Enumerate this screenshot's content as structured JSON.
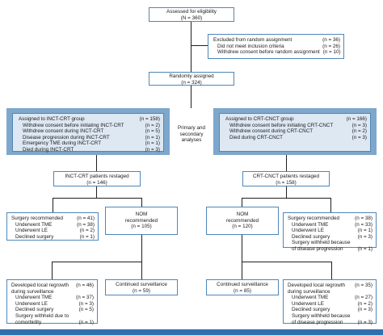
{
  "eligibility": {
    "title": "Assessed for eligibility",
    "n": "(N = 360)"
  },
  "excluded": {
    "title": "Excluded from random assignment",
    "title_n": "(n = 36)",
    "items": [
      {
        "label": "Did not meet inclusion criteria",
        "n": "(n = 26)"
      },
      {
        "label": "Withdrew consent before random assignment",
        "n": "(n = 10)"
      }
    ]
  },
  "randomized": {
    "title": "Randomly assigned",
    "n": "(n = 324)"
  },
  "analyses_label": "Primary and secondary analyses",
  "incrt": {
    "group": {
      "title": "Assigned to INCT-CRT group",
      "title_n": "(n = 158)",
      "items": [
        {
          "label": "Withdrew consent before initiating INCT-CRT",
          "n": "(n = 2)"
        },
        {
          "label": "Withdrew consent during INCT-CRT",
          "n": "(n = 5)"
        },
        {
          "label": "Disease progression during INCT-CRT",
          "n": "(n = 1)"
        },
        {
          "label": "Emergency TME during INCT-CRT",
          "n": "(n = 1)"
        },
        {
          "label": "Died during INCT-CRT",
          "n": "(n = 3)"
        }
      ]
    },
    "restaged": {
      "title": "INCT-CRT patients restaged",
      "n": "(n = 146)"
    },
    "surgery": {
      "title": "Surgery recommended",
      "title_n": "(n = 41)",
      "items": [
        {
          "label": "Underwent TME",
          "n": "(n = 38)"
        },
        {
          "label": "Underwent LE",
          "n": "(n = 2)"
        },
        {
          "label": "Declined surgery",
          "n": "(n = 1)"
        }
      ]
    },
    "nom": {
      "title": "NOM recommended",
      "n": "(n = 105)"
    },
    "regrowth": {
      "title": "Developed local regrowth during surveillance",
      "title_n": "(n = 46)",
      "items": [
        {
          "label": "Underwent TME",
          "n": "(n = 37)"
        },
        {
          "label": "Underwent LE",
          "n": "(n = 3)"
        },
        {
          "label": "Declined surgery",
          "n": "(n = 5)"
        },
        {
          "label": "Surgery withheld due to comorbidity",
          "n": "(n = 1)"
        }
      ]
    },
    "continued": {
      "title": "Continued surveillance",
      "n": "(n = 59)"
    }
  },
  "crtcnct": {
    "group": {
      "title": "Assigned to CRT-CNCT group",
      "title_n": "(n = 166)",
      "items": [
        {
          "label": "Withdrew consent before initiating CRT-CNCT",
          "n": "(n = 3)"
        },
        {
          "label": "Withdrew consent during CRT-CNCT",
          "n": "(n = 2)"
        },
        {
          "label": "Died during CRT-CNCT",
          "n": "(n = 3)"
        }
      ]
    },
    "restaged": {
      "title": "CRT-CNCT patients restaged",
      "n": "(n = 158)"
    },
    "nom": {
      "title": "NOM recommended",
      "n": "(n = 120)"
    },
    "surgery": {
      "title": "Surgery recommended",
      "title_n": "(n = 38)",
      "items": [
        {
          "label": "Underwent TME",
          "n": "(n = 33)"
        },
        {
          "label": "Underwent LE",
          "n": "(n = 1)"
        },
        {
          "label": "Declined surgery",
          "n": "(n = 3)"
        },
        {
          "label": "Surgery withheld because of disease progression",
          "n": "(n = 1)"
        }
      ]
    },
    "continued": {
      "title": "Continued surveillance",
      "n": "(n = 85)"
    },
    "regrowth": {
      "title": "Developed local regrowth during surveillance",
      "title_n": "(n = 35)",
      "items": [
        {
          "label": "Underwent TME",
          "n": "(n = 27)"
        },
        {
          "label": "Underwent LE",
          "n": "(n = 2)"
        },
        {
          "label": "Declined surgery",
          "n": "(n = 3)"
        },
        {
          "label": "Surgery withheld because of disease progression",
          "n": "(n = 3)"
        }
      ]
    }
  },
  "colors": {
    "box_border": "#4f86b9",
    "band": "#7ea7cc",
    "fill": "#dde8f3",
    "line": "#1f1f1f",
    "footer": "#2e6fb0"
  }
}
